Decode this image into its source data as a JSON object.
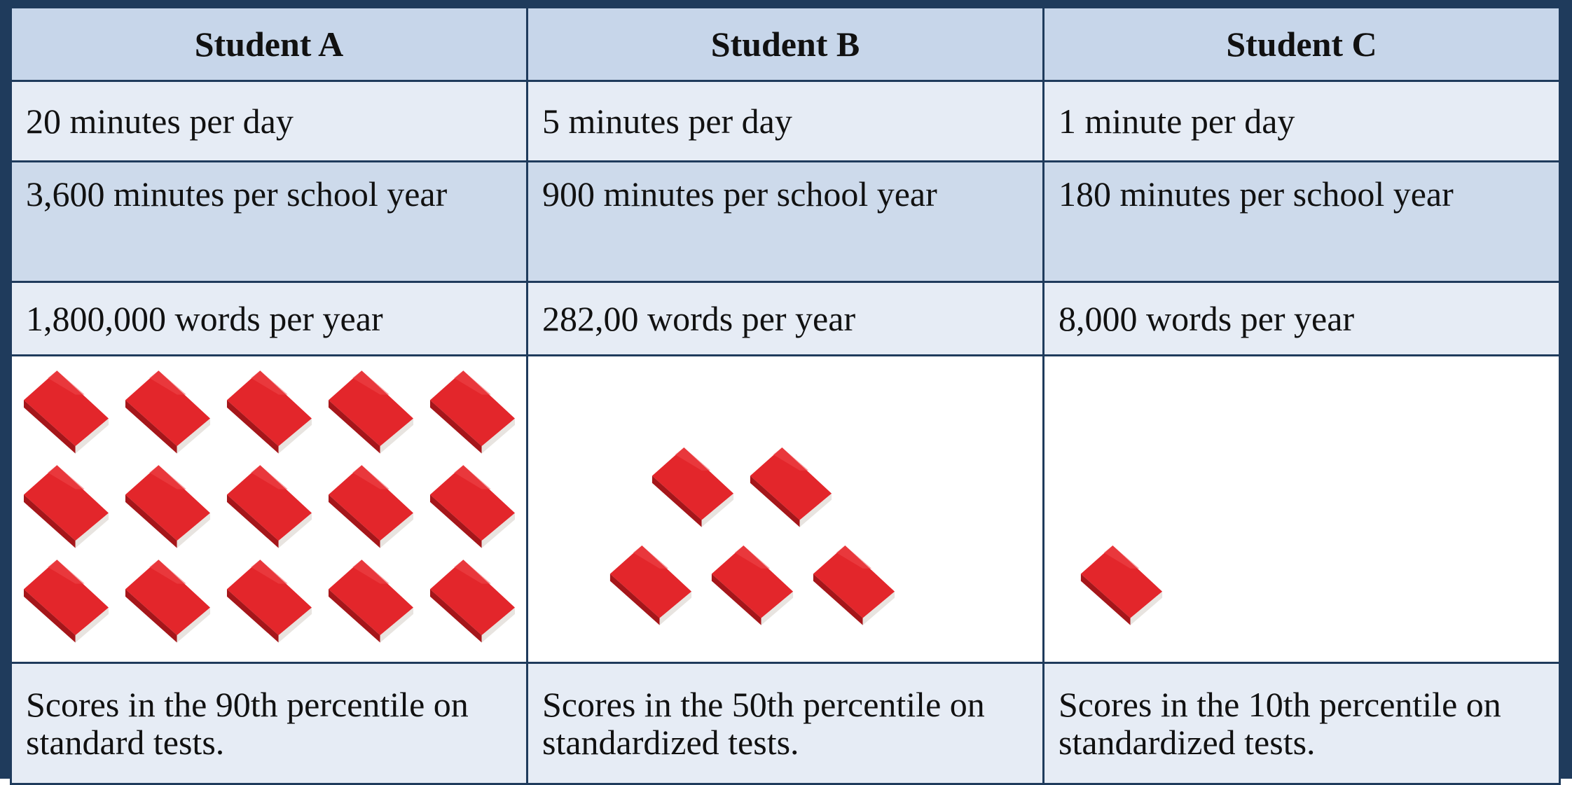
{
  "table": {
    "headers": [
      "Student A",
      "Student B",
      "Student C"
    ],
    "rows": [
      [
        "20 minutes per day",
        "5 minutes per day",
        "1 minute per day"
      ],
      [
        "3,600 minutes per school year",
        "900 minutes per school year",
        "180 minutes per school year"
      ],
      [
        "1,800,000 words per year",
        "282,00 words per year",
        "8,000 words per year"
      ],
      [
        "Scores in the 90th percentile on standard tests.",
        "Scores in the 50th percentile on standardized tests.",
        "Scores in the 10th percentile on standardized tests."
      ]
    ]
  }
}
